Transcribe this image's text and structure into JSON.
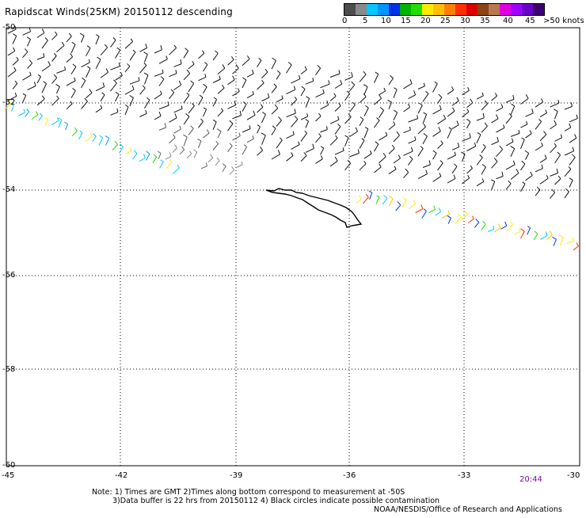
{
  "title": "Rapidscat Winds(25KM) 20150112 descending",
  "legend": {
    "colors": [
      "#4d4d4d",
      "#8a8a8a",
      "#00c8ff",
      "#0096ff",
      "#0032e6",
      "#00b400",
      "#22dd00",
      "#ffeb00",
      "#ffc000",
      "#ff8000",
      "#ff3000",
      "#dc0000",
      "#8b4513",
      "#b87850",
      "#e000e0",
      "#a000ff",
      "#6a00c8",
      "#3c0070"
    ],
    "labels": [
      "0",
      "5",
      "10",
      "15",
      "20",
      "25",
      "30",
      "35",
      "40",
      "45",
      ">50 knots"
    ]
  },
  "latitudes": [
    "-50",
    "-52",
    "-54",
    "-56",
    "-58",
    "-60"
  ],
  "longitudes": [
    "-45",
    "-42",
    "-39",
    "-36",
    "-33",
    "-30"
  ],
  "time_label": "20:44",
  "notes": {
    "line1": "Note: 1) Times are GMT 2)Times along bottom correspond to measurement at -50S",
    "line2": "3)Data buffer is 22 hrs from 20150112 4) Black circles indicate possible contamination"
  },
  "credit": "NOAA/NESDIS/Office of Research and Applications",
  "wind_speed_classes_knots": [
    "0-5",
    "5-10",
    "10-15",
    "15-20",
    "20-25",
    "25-30",
    "30-35"
  ]
}
